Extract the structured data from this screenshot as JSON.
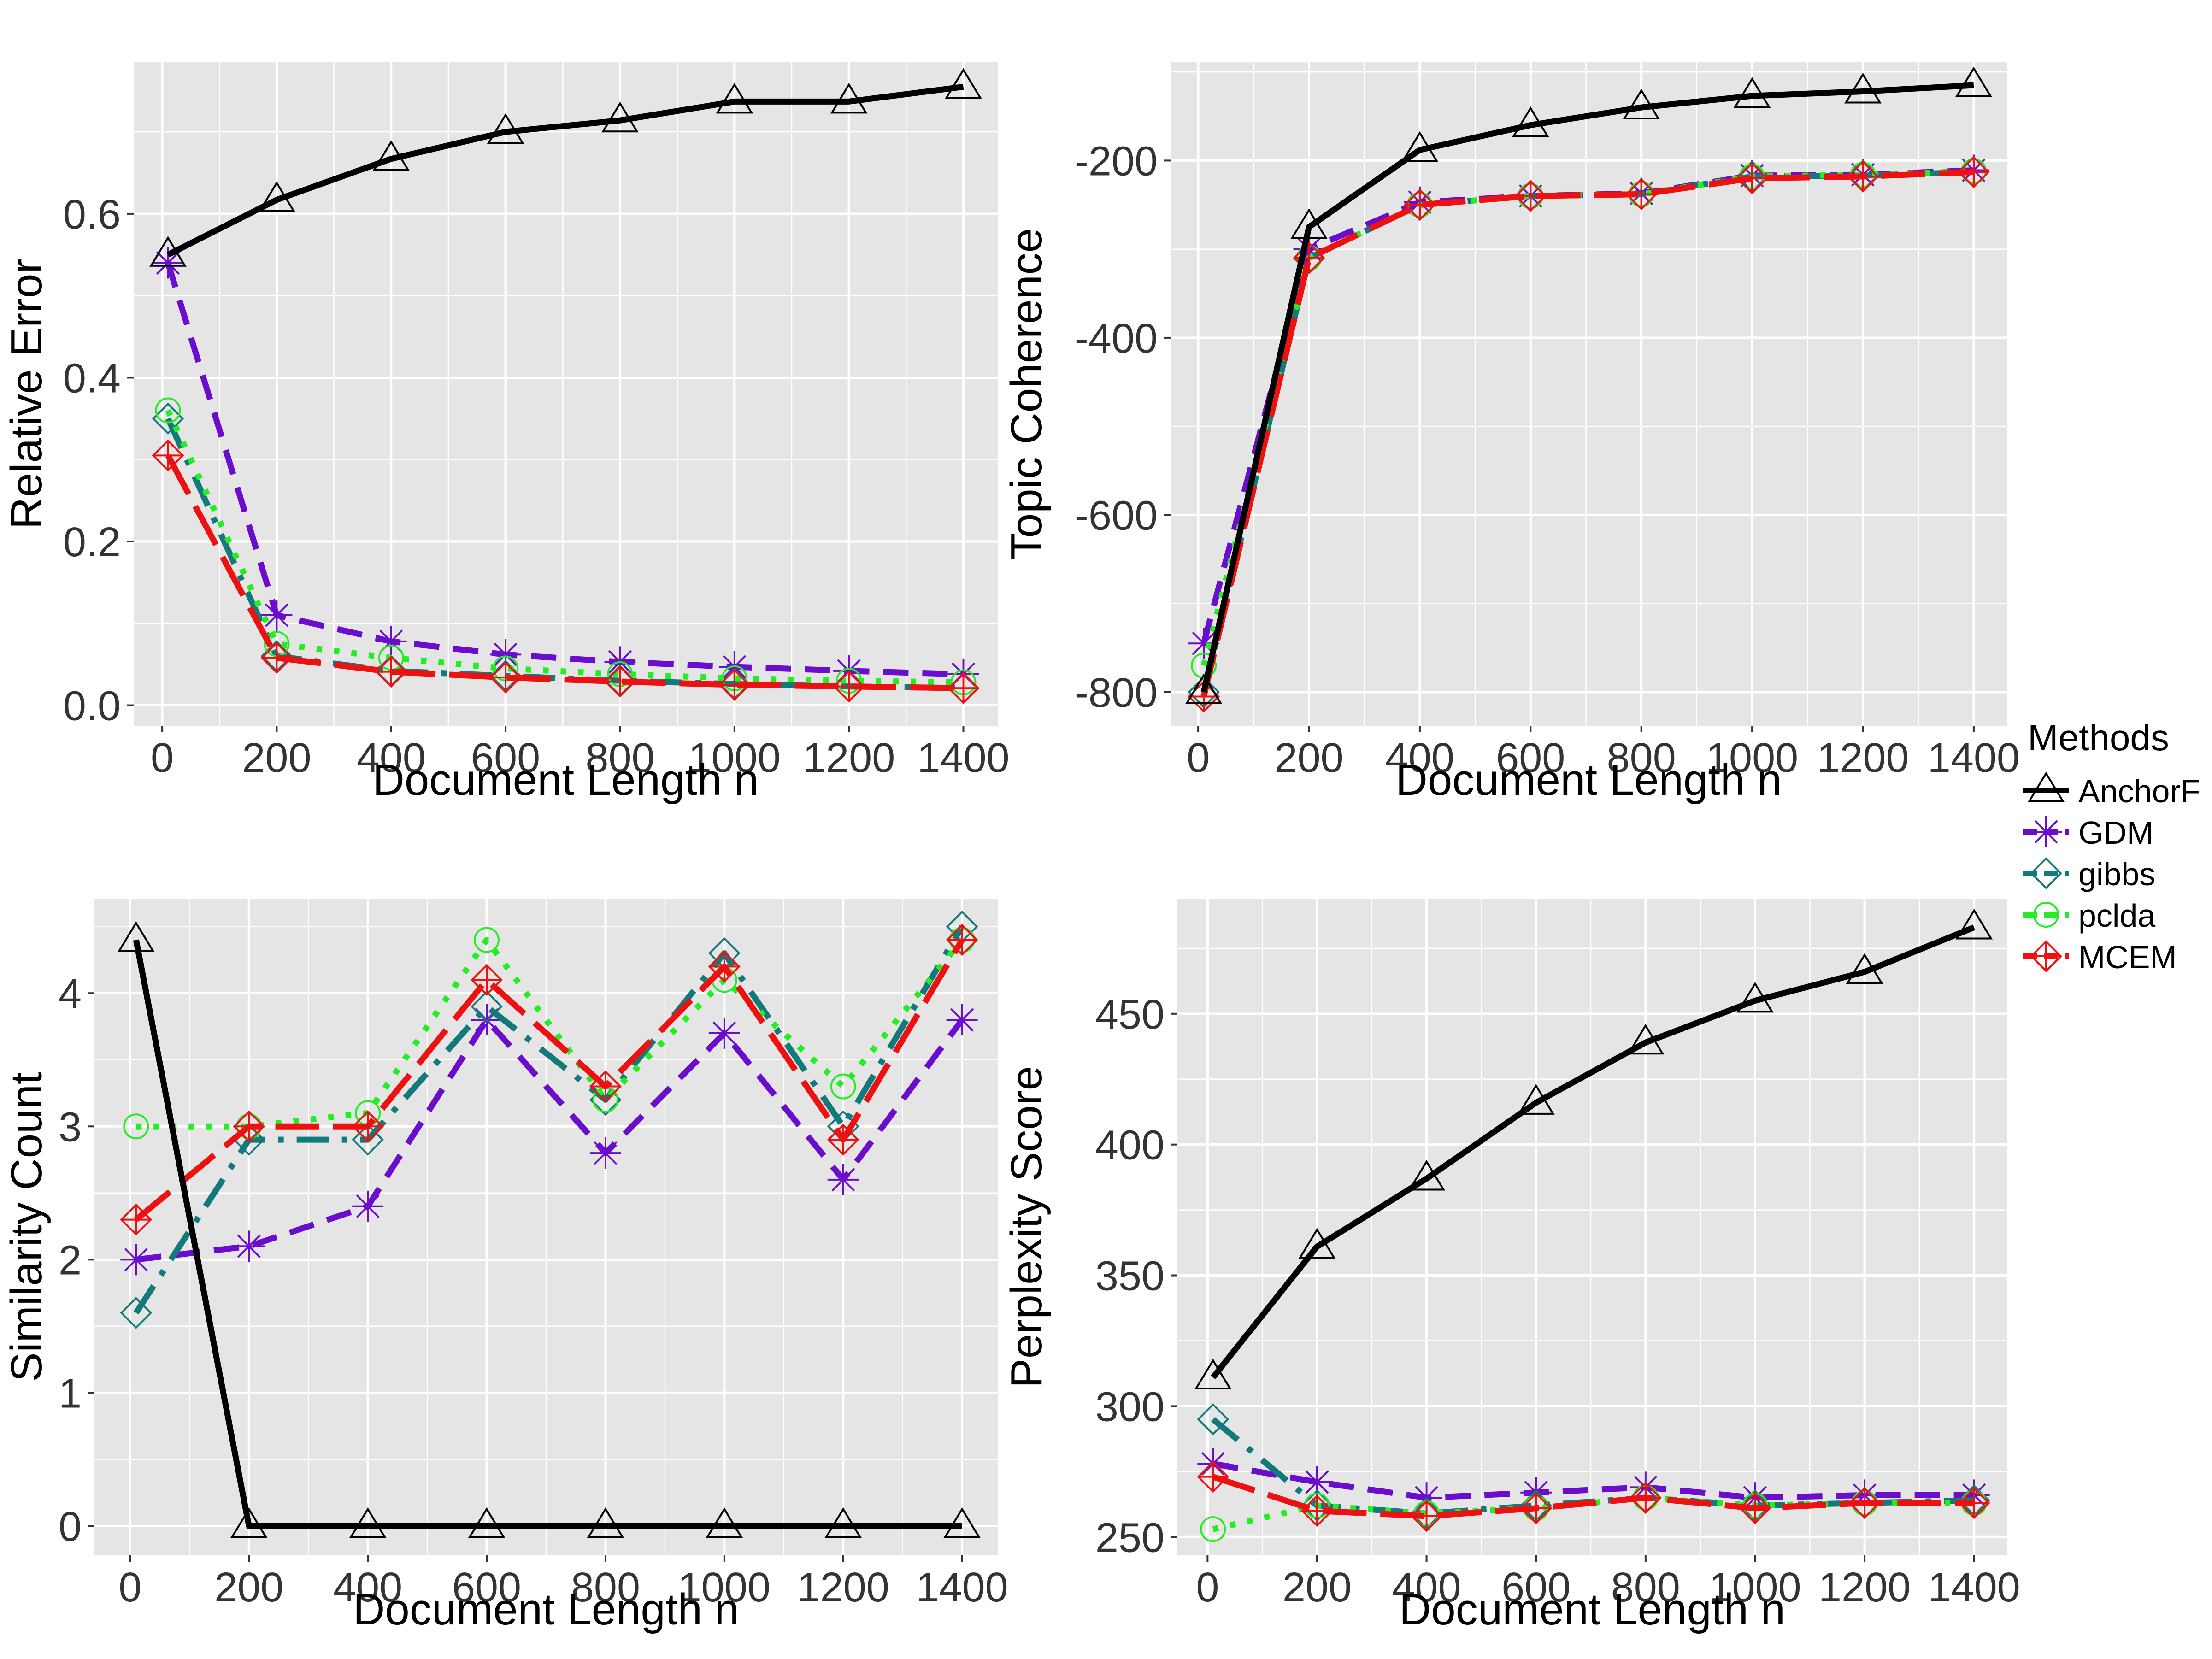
{
  "colors": {
    "panel_bg": "#e5e5e5",
    "grid": "#ffffff",
    "AnchorF": "#000000",
    "GDM": "#6a0dcc",
    "gibbs": "#127a7a",
    "pclda": "#22ee22",
    "MCEM": "#ee1111"
  },
  "legend": {
    "title": "Methods",
    "placement": "right",
    "items": [
      {
        "label": "AnchorF",
        "key": "AnchorF",
        "shape": "triangle",
        "dash": "solid"
      },
      {
        "label": "GDM",
        "key": "GDM",
        "shape": "asterisk",
        "dash": "dashed"
      },
      {
        "label": "gibbs",
        "key": "gibbs",
        "shape": "diamond",
        "dash": "dotdash"
      },
      {
        "label": "pclda",
        "key": "pclda",
        "shape": "circle",
        "dash": "dotted"
      },
      {
        "label": "MCEM",
        "key": "MCEM",
        "shape": "diamondplus",
        "dash": "longdash"
      }
    ]
  },
  "chart_data": [
    {
      "type": "line",
      "title": "",
      "xlabel": "Document Length n",
      "ylabel": "Relative Error",
      "x": [
        10,
        200,
        400,
        600,
        800,
        1000,
        1200,
        1400
      ],
      "xticks": [
        0,
        200,
        400,
        600,
        800,
        1000,
        1200,
        1400
      ],
      "xlim": [
        -50,
        1460
      ],
      "yticks": [
        0.0,
        0.2,
        0.4,
        0.6
      ],
      "ytick_labels": [
        "0.0",
        "0.2",
        "0.4",
        "0.6"
      ],
      "ylim": [
        -0.025,
        0.785
      ],
      "grid": true,
      "series": [
        {
          "name": "AnchorF",
          "values": [
            0.55,
            0.617,
            0.667,
            0.7,
            0.714,
            0.737,
            0.737,
            0.755
          ]
        },
        {
          "name": "GDM",
          "values": [
            0.54,
            0.11,
            0.078,
            0.062,
            0.053,
            0.047,
            0.042,
            0.038
          ]
        },
        {
          "name": "gibbs",
          "values": [
            0.35,
            0.06,
            0.042,
            0.036,
            0.03,
            0.026,
            0.023,
            0.021
          ]
        },
        {
          "name": "pclda",
          "values": [
            0.36,
            0.075,
            0.058,
            0.045,
            0.038,
            0.033,
            0.03,
            0.028
          ]
        },
        {
          "name": "MCEM",
          "values": [
            0.305,
            0.058,
            0.041,
            0.034,
            0.029,
            0.025,
            0.023,
            0.021
          ]
        }
      ]
    },
    {
      "type": "line",
      "title": "",
      "xlabel": "Document Length n",
      "ylabel": "Topic Coherence",
      "x": [
        10,
        200,
        400,
        600,
        800,
        1000,
        1200,
        1400
      ],
      "xticks": [
        0,
        200,
        400,
        600,
        800,
        1000,
        1200,
        1400
      ],
      "xlim": [
        -50,
        1460
      ],
      "yticks": [
        -800,
        -600,
        -400,
        -200
      ],
      "ytick_labels": [
        "-800",
        "-600",
        "-400",
        "-200"
      ],
      "ylim": [
        -838,
        -89
      ],
      "grid": true,
      "series": [
        {
          "name": "AnchorF",
          "values": [
            -800,
            -275,
            -188,
            -160,
            -140,
            -127,
            -122,
            -115
          ]
        },
        {
          "name": "GDM",
          "values": [
            -745,
            -300,
            -247,
            -240,
            -237,
            -217,
            -216,
            -211
          ]
        },
        {
          "name": "gibbs",
          "values": [
            -800,
            -310,
            -250,
            -240,
            -238,
            -218,
            -217,
            -213
          ]
        },
        {
          "name": "pclda",
          "values": [
            -770,
            -310,
            -250,
            -240,
            -238,
            -218,
            -216,
            -212
          ]
        },
        {
          "name": "MCEM",
          "values": [
            -805,
            -310,
            -250,
            -240,
            -238,
            -220,
            -218,
            -213
          ]
        }
      ]
    },
    {
      "type": "line",
      "title": "",
      "xlabel": "Document Length n",
      "ylabel": "Similarity Count",
      "x": [
        10,
        200,
        400,
        600,
        800,
        1000,
        1200,
        1400
      ],
      "xticks": [
        0,
        200,
        400,
        600,
        800,
        1000,
        1200,
        1400
      ],
      "xlim": [
        -60,
        1460
      ],
      "yticks": [
        0,
        1,
        2,
        3,
        4
      ],
      "ytick_labels": [
        "0",
        "1",
        "2",
        "3",
        "4"
      ],
      "ylim": [
        -0.22,
        4.71
      ],
      "grid": true,
      "series": [
        {
          "name": "AnchorF",
          "values": [
            4.4,
            0,
            0,
            0,
            0,
            0,
            0,
            0
          ]
        },
        {
          "name": "GDM",
          "values": [
            2.0,
            2.1,
            2.4,
            3.8,
            2.8,
            3.7,
            2.6,
            3.8
          ]
        },
        {
          "name": "gibbs",
          "values": [
            1.6,
            2.9,
            2.9,
            3.9,
            3.2,
            4.3,
            3.0,
            4.5
          ]
        },
        {
          "name": "pclda",
          "values": [
            3.0,
            3.0,
            3.1,
            4.4,
            3.2,
            4.1,
            3.3,
            4.4
          ]
        },
        {
          "name": "MCEM",
          "values": [
            2.3,
            3.0,
            3.0,
            4.1,
            3.3,
            4.2,
            2.9,
            4.4
          ]
        }
      ]
    },
    {
      "type": "line",
      "title": "",
      "xlabel": "Document Length n",
      "ylabel": "Perplexity Score",
      "x": [
        10,
        200,
        400,
        600,
        800,
        1000,
        1200,
        1400
      ],
      "xticks": [
        0,
        200,
        400,
        600,
        800,
        1000,
        1200,
        1400
      ],
      "xlim": [
        -55,
        1460
      ],
      "yticks": [
        250,
        300,
        350,
        400,
        450
      ],
      "ytick_labels": [
        "250",
        "300",
        "350",
        "400",
        "450"
      ],
      "ylim": [
        243,
        494
      ],
      "grid": true,
      "series": [
        {
          "name": "AnchorF",
          "values": [
            311,
            361,
            387,
            416,
            439,
            455,
            466,
            483
          ]
        },
        {
          "name": "GDM",
          "values": [
            278,
            271,
            265,
            267,
            269,
            265,
            266,
            266
          ]
        },
        {
          "name": "gibbs",
          "values": [
            295,
            262,
            259,
            262,
            265,
            262,
            263,
            264
          ]
        },
        {
          "name": "pclda",
          "values": [
            253,
            262,
            259,
            261,
            265,
            262,
            263,
            263
          ]
        },
        {
          "name": "MCEM",
          "values": [
            273,
            260,
            258,
            261,
            265,
            261,
            263,
            263
          ]
        }
      ]
    }
  ]
}
